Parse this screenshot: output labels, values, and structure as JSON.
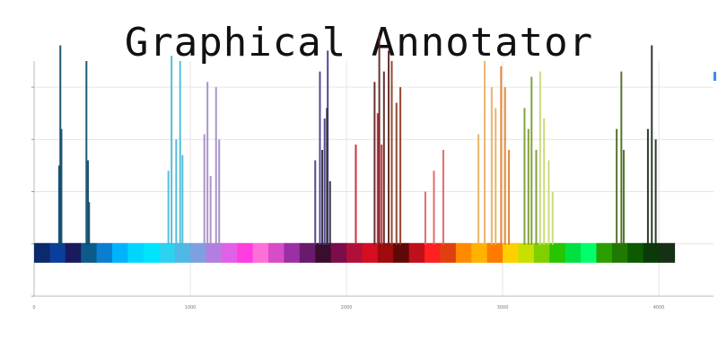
{
  "title": "Graphical Annotator",
  "legend_marker_color": "#3a8ee6",
  "chart_data": {
    "type": "bar",
    "xlim": [
      0,
      4350
    ],
    "ylim": [
      -1,
      3.5
    ],
    "grid": true,
    "x_ticks": [
      0,
      1000,
      2000,
      3000,
      4000
    ],
    "y_ticks": [
      -1,
      0,
      1,
      2,
      3
    ],
    "y_tick_labels": [
      "",
      "",
      "",
      "",
      ""
    ],
    "colorband": {
      "x_start": 0,
      "x_end": 4100,
      "colors": [
        "#0b2a6b",
        "#0a3d9c",
        "#1a1a5e",
        "#0c5a8a",
        "#0a7fcf",
        "#00b3ff",
        "#00d6ff",
        "#00e5ff",
        "#2ad3f0",
        "#4fb8e6",
        "#7fa0e0",
        "#b27fe0",
        "#e060e6",
        "#ff3de0",
        "#ff6fd8",
        "#d84cc8",
        "#9a2fa6",
        "#6a1a6a",
        "#3a0d2e",
        "#7a0d4a",
        "#b00f3a",
        "#d40d22",
        "#a00a0a",
        "#600808",
        "#c0101a",
        "#ff2020",
        "#e04010",
        "#ff8a00",
        "#ffb300",
        "#ff7a00",
        "#ffd000",
        "#c8e000",
        "#7ed000",
        "#27c400",
        "#00e040",
        "#00ff6a",
        "#2aa000",
        "#1e7a00",
        "#0d5a00",
        "#0a3a0a",
        "#153015"
      ]
    },
    "series": [
      {
        "color": "#0d4a6a",
        "points": [
          [
            160,
            1.5
          ],
          [
            168,
            3.8
          ],
          [
            175,
            2.2
          ]
        ]
      },
      {
        "color": "#0d4a6a",
        "points": [
          [
            335,
            3.5
          ],
          [
            345,
            1.6
          ],
          [
            352,
            0.8
          ]
        ]
      },
      {
        "color": "#46b8d8",
        "points": [
          [
            860,
            1.4
          ],
          [
            880,
            3.6
          ],
          [
            910,
            2.0
          ],
          [
            935,
            3.5
          ],
          [
            950,
            1.7
          ]
        ]
      },
      {
        "color": "#a48ac4",
        "points": [
          [
            1090,
            2.1
          ],
          [
            1110,
            3.1
          ],
          [
            1130,
            1.3
          ],
          [
            1165,
            3.0
          ],
          [
            1185,
            2.0
          ]
        ]
      },
      {
        "color": "#4a3a88",
        "points": [
          [
            1800,
            1.6
          ],
          [
            1830,
            3.3
          ],
          [
            1860,
            2.4
          ],
          [
            1880,
            3.7
          ]
        ]
      },
      {
        "color": "#2a2a3a",
        "points": [
          [
            1845,
            1.8
          ],
          [
            1875,
            2.6
          ],
          [
            1895,
            1.2
          ]
        ]
      },
      {
        "color": "#c8202a",
        "points": [
          [
            2060,
            1.9
          ],
          [
            2200,
            2.5
          ],
          [
            2225,
            1.9
          ]
        ]
      },
      {
        "color": "#5a2020",
        "points": [
          [
            2180,
            3.1
          ],
          [
            2210,
            4.0
          ],
          [
            2240,
            3.3
          ],
          [
            2270,
            3.7
          ]
        ]
      },
      {
        "color": "#8a3a1a",
        "points": [
          [
            2290,
            3.5
          ],
          [
            2320,
            2.7
          ],
          [
            2345,
            3.0
          ]
        ]
      },
      {
        "color": "#e06060",
        "points": [
          [
            2505,
            1.0
          ],
          [
            2560,
            1.4
          ],
          [
            2620,
            1.8
          ]
        ]
      },
      {
        "color": "#e8b060",
        "points": [
          [
            2845,
            2.1
          ],
          [
            2885,
            3.5
          ],
          [
            2930,
            3.0
          ],
          [
            2955,
            2.6
          ]
        ]
      },
      {
        "color": "#e0802a",
        "points": [
          [
            2990,
            3.4
          ],
          [
            3015,
            3.0
          ],
          [
            3040,
            1.8
          ]
        ]
      },
      {
        "color": "#7a9a2a",
        "points": [
          [
            3140,
            2.6
          ],
          [
            3165,
            2.2
          ],
          [
            3185,
            3.2
          ],
          [
            3215,
            1.8
          ]
        ]
      },
      {
        "color": "#c8d870",
        "points": [
          [
            3240,
            3.3
          ],
          [
            3265,
            2.4
          ],
          [
            3295,
            1.6
          ],
          [
            3320,
            1.0
          ]
        ]
      },
      {
        "color": "#4a6a1a",
        "points": [
          [
            3730,
            2.2
          ],
          [
            3760,
            3.3
          ],
          [
            3775,
            1.8
          ]
        ]
      },
      {
        "color": "#1a2a1a",
        "points": [
          [
            3930,
            2.2
          ],
          [
            3955,
            3.8
          ],
          [
            3980,
            2.0
          ]
        ]
      }
    ]
  }
}
